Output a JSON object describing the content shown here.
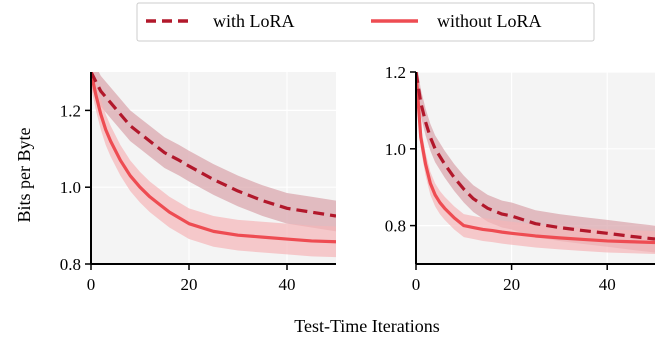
{
  "figure": {
    "xlabel": "Test-Time Iterations",
    "ylabel": "Bits per Byte",
    "legend_placement": "top-center",
    "colors": {
      "with_lora": "#b2182b",
      "with_lora_band": "#d9a3aa",
      "without_lora": "#ee4c52",
      "without_lora_band": "#f5b5b8",
      "panel_bg": "#f4f4f4",
      "grid": "#ffffff"
    }
  },
  "chart_data": [
    {
      "type": "line",
      "xlabel": "Test-Time Iterations",
      "ylabel": "Bits per Byte",
      "xlim": [
        0,
        50
      ],
      "ylim": [
        0.8,
        1.3
      ],
      "xticks": [
        0,
        20,
        40
      ],
      "yticks": [
        0.8,
        1.0,
        1.2
      ],
      "ytick_labels": [
        "0.8",
        "1.0",
        "1.2"
      ],
      "grid": true,
      "series": [
        {
          "name": "with LoRA",
          "style": "dashed",
          "x": [
            0,
            2,
            4,
            6,
            8,
            10,
            12,
            15,
            18,
            20,
            25,
            30,
            35,
            40,
            45,
            50
          ],
          "y": [
            1.3,
            1.25,
            1.22,
            1.19,
            1.16,
            1.14,
            1.12,
            1.09,
            1.07,
            1.055,
            1.02,
            0.99,
            0.965,
            0.945,
            0.935,
            0.925
          ],
          "band": 0.04
        },
        {
          "name": "without LoRA",
          "style": "solid",
          "x": [
            0,
            1,
            2,
            3,
            4,
            6,
            8,
            10,
            12,
            14,
            16,
            18,
            20,
            25,
            30,
            35,
            40,
            45,
            50
          ],
          "y": [
            1.3,
            1.24,
            1.19,
            1.15,
            1.12,
            1.07,
            1.03,
            1.0,
            0.975,
            0.955,
            0.935,
            0.92,
            0.905,
            0.885,
            0.875,
            0.87,
            0.865,
            0.86,
            0.858
          ],
          "band": 0.04
        }
      ]
    },
    {
      "type": "line",
      "xlabel": "Test-Time Iterations",
      "ylabel": "",
      "xlim": [
        0,
        50
      ],
      "ylim": [
        0.7,
        1.2
      ],
      "xticks": [
        0,
        20,
        40
      ],
      "yticks": [
        0.8,
        1.0,
        1.2
      ],
      "ytick_labels": [
        "0.8",
        "1.0",
        "1.2"
      ],
      "grid": true,
      "series": [
        {
          "name": "with LoRA",
          "style": "dashed",
          "x": [
            0,
            1,
            2,
            3,
            4,
            6,
            8,
            10,
            12,
            15,
            18,
            20,
            25,
            30,
            35,
            40,
            45,
            50
          ],
          "y": [
            1.2,
            1.12,
            1.07,
            1.03,
            1.0,
            0.96,
            0.925,
            0.895,
            0.87,
            0.845,
            0.83,
            0.825,
            0.805,
            0.795,
            0.787,
            0.78,
            0.772,
            0.765
          ],
          "band": 0.035
        },
        {
          "name": "without LoRA",
          "style": "solid",
          "x": [
            0,
            1,
            2,
            3,
            4,
            5,
            6,
            8,
            10,
            12,
            14,
            16,
            18,
            20,
            25,
            30,
            35,
            40,
            45,
            50
          ],
          "y": [
            1.2,
            1.03,
            0.96,
            0.91,
            0.88,
            0.86,
            0.845,
            0.82,
            0.8,
            0.795,
            0.79,
            0.787,
            0.783,
            0.78,
            0.773,
            0.768,
            0.764,
            0.76,
            0.758,
            0.756
          ],
          "band": 0.03
        }
      ]
    }
  ]
}
